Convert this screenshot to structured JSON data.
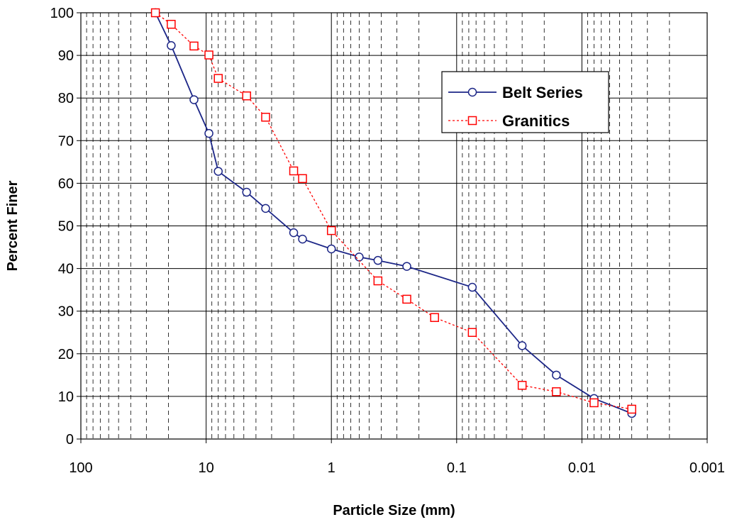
{
  "chart_data": {
    "type": "line",
    "x_scale": "log",
    "x_reversed": true,
    "xlim": [
      100,
      0.001
    ],
    "ylim": [
      0,
      100
    ],
    "xlabel": "Particle Size (mm)",
    "ylabel": "Percent Finer",
    "x_ticks": [
      "100",
      "10",
      "1",
      "0.1",
      "0.01",
      "0.001"
    ],
    "y_ticks": [
      "0",
      "10",
      "20",
      "30",
      "40",
      "50",
      "60",
      "70",
      "80",
      "90",
      "100"
    ],
    "grid": "major solid, minor dashed",
    "legend_position": "upper-right",
    "series": [
      {
        "name": "Belt Series",
        "color": "#1c2687",
        "marker": "circle",
        "line_style": "solid",
        "x": [
          25.4,
          19.0,
          12.5,
          9.5,
          8.0,
          4.75,
          3.35,
          2.0,
          1.7,
          1.0,
          0.6,
          0.425,
          0.25,
          0.075,
          0.03,
          0.016,
          0.008,
          0.004
        ],
        "y": [
          100,
          92.3,
          79.6,
          71.7,
          62.8,
          57.9,
          54.1,
          48.4,
          46.9,
          44.6,
          42.7,
          41.9,
          40.5,
          35.6,
          21.9,
          15.0,
          9.5,
          6.0
        ]
      },
      {
        "name": "Granitics",
        "color": "#ff0000",
        "marker": "square",
        "line_style": "dotted",
        "x": [
          25.4,
          19.0,
          12.5,
          9.5,
          8.0,
          4.75,
          3.35,
          2.0,
          1.7,
          1.0,
          0.425,
          0.25,
          0.15,
          0.075,
          0.03,
          0.016,
          0.008,
          0.004
        ],
        "y": [
          100,
          97.3,
          92.2,
          90.1,
          84.6,
          80.5,
          75.5,
          62.9,
          61.1,
          48.9,
          37.1,
          32.8,
          28.5,
          25.0,
          12.6,
          11.1,
          8.5,
          7.0
        ]
      }
    ]
  }
}
